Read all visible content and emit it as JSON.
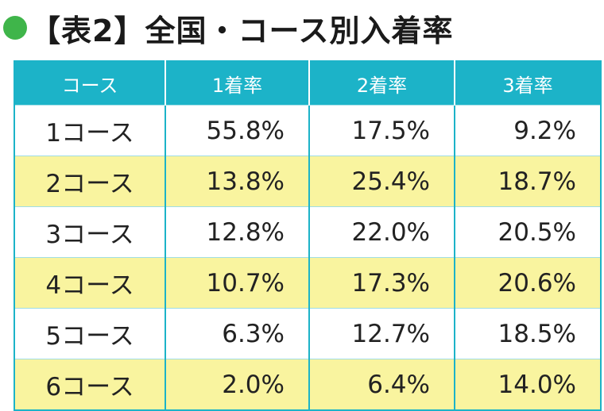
{
  "title": {
    "bracket_text": "【表2】全国・コース別入着率"
  },
  "colors": {
    "header_bg": "#1cb3c8",
    "row_highlight": "#f9f49f",
    "dot": "#3fb54a"
  },
  "table": {
    "headers": [
      "コース",
      "1着率",
      "2着率",
      "3着率"
    ],
    "rows": [
      {
        "course": "1コース",
        "first": "55.8%",
        "second": "17.5%",
        "third": "9.2%"
      },
      {
        "course": "2コース",
        "first": "13.8%",
        "second": "25.4%",
        "third": "18.7%"
      },
      {
        "course": "3コース",
        "first": "12.8%",
        "second": "22.0%",
        "third": "20.5%"
      },
      {
        "course": "4コース",
        "first": "10.7%",
        "second": "17.3%",
        "third": "20.6%"
      },
      {
        "course": "5コース",
        "first": "6.3%",
        "second": "12.7%",
        "third": "18.5%"
      },
      {
        "course": "6コース",
        "first": "2.0%",
        "second": "6.4%",
        "third": "14.0%"
      }
    ]
  }
}
